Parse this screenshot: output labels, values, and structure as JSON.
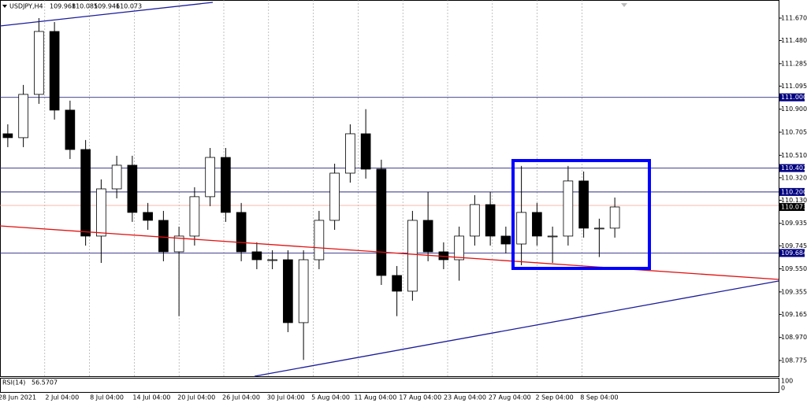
{
  "chart_data": {
    "type": "candlestick",
    "symbol": "USDJPY,H4",
    "header_prices": [
      109.968,
      110.085,
      109.946,
      110.073
    ],
    "open": [
      110.692,
      110.659,
      111.025,
      111.557,
      110.892,
      110.559,
      109.827,
      110.226,
      110.426,
      110.027,
      109.96,
      109.694,
      109.827,
      110.16,
      110.492,
      110.027,
      109.694,
      109.627,
      109.627,
      109.095,
      109.627,
      109.96,
      110.359,
      110.692,
      110.393,
      109.494,
      109.361,
      109.96,
      109.694,
      109.627,
      109.827,
      110.093,
      109.827,
      109.76,
      110.027,
      109.827,
      109.827,
      110.293,
      109.894,
      109.894
    ],
    "high": [
      110.772,
      111.105,
      111.67,
      111.637,
      110.972,
      110.639,
      110.306,
      110.506,
      110.506,
      110.107,
      110.04,
      109.907,
      110.24,
      110.572,
      110.572,
      110.107,
      109.774,
      109.707,
      109.707,
      109.707,
      110.04,
      110.439,
      110.772,
      110.9,
      110.473,
      109.574,
      110.04,
      110.2,
      109.774,
      109.907,
      110.173,
      110.2,
      109.907,
      110.42,
      110.107,
      109.907,
      110.42,
      110.373,
      109.974,
      110.153
    ],
    "low": [
      110.579,
      110.579,
      110.945,
      110.812,
      110.479,
      109.747,
      109.6,
      110.146,
      109.947,
      109.88,
      109.614,
      109.15,
      109.747,
      110.08,
      109.947,
      109.614,
      109.547,
      109.547,
      109.015,
      108.78,
      109.547,
      109.88,
      110.279,
      110.313,
      109.414,
      109.15,
      109.281,
      109.614,
      109.547,
      109.45,
      109.747,
      109.747,
      109.68,
      109.58,
      109.747,
      109.6,
      109.747,
      109.814,
      109.65,
      109.814
    ],
    "close": [
      110.659,
      111.025,
      111.557,
      110.892,
      110.559,
      109.827,
      110.226,
      110.426,
      110.027,
      109.96,
      109.694,
      109.827,
      110.16,
      110.492,
      110.027,
      109.694,
      109.627,
      109.627,
      109.095,
      109.627,
      109.96,
      110.359,
      110.692,
      110.393,
      109.494,
      109.361,
      109.96,
      109.694,
      109.627,
      109.827,
      110.093,
      109.827,
      109.76,
      110.027,
      109.827,
      109.827,
      110.293,
      109.894,
      109.894,
      110.073
    ],
    "ylim": [
      108.642,
      111.823
    ],
    "yticks": [
      {
        "value": 111.67,
        "label": "111.670"
      },
      {
        "value": 111.48,
        "label": "111.480"
      },
      111.285,
      111.095,
      {
        "value": 110.9,
        "label": "110.900"
      },
      110.705,
      {
        "value": 110.51,
        "label": "110.510"
      },
      {
        "value": 110.32,
        "label": "110.320"
      },
      {
        "value": 110.13,
        "label": "110.130"
      },
      109.935,
      109.745,
      {
        "value": 109.55,
        "label": "109.550"
      },
      109.355,
      109.165,
      {
        "value": 108.97,
        "label": "108.970"
      },
      108.775
    ],
    "levels": [
      {
        "value": 111,
        "label": "111.000"
      },
      110.402,
      {
        "value": 110.2,
        "label": "110.200"
      },
      109.684
    ],
    "current_price": 110.073,
    "time_labels": [
      "28 Jun 2021",
      "2 Jul 04:00",
      "8 Jul 04:00",
      "14 Jul 04:00",
      "20 Jul 04:00",
      "26 Jul 04:00",
      "30 Jul 04:00",
      "5 Aug 04:00",
      "11 Aug 04:00",
      "17 Aug 04:00",
      "23 Aug 04:00",
      "27 Aug 04:00",
      "2 Sep 04:00",
      "8 Sep 04:00"
    ],
    "rsi_label": "RSI(14)",
    "rsi_value": 56.5707,
    "rsi_yticks": [
      100,
      0
    ]
  }
}
